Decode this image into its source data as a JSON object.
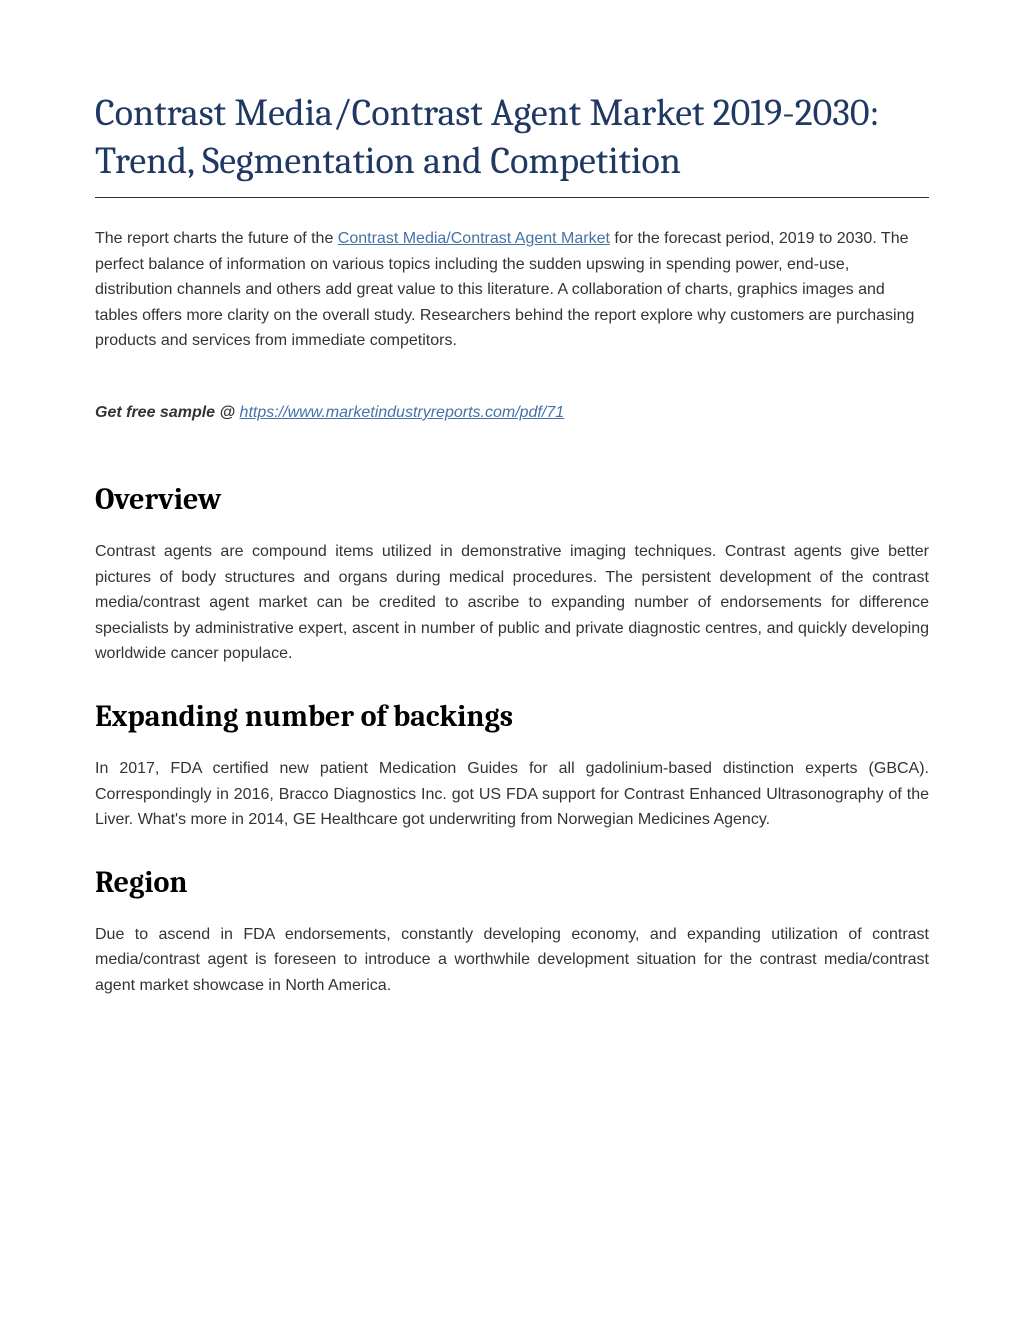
{
  "title": "Contrast Media/Contrast Agent Market 2019-2030: Trend, Segmentation and Competition",
  "intro": {
    "before_link": "The report charts the future of the ",
    "link_text": "Contrast Media/Contrast Agent Market",
    "after_link": " for the forecast period, 2019 to 2030. The perfect balance of information on various topics including the sudden upswing in spending power, end-use, distribution channels and others add great value to this literature. A collaboration of charts, graphics images and tables offers more clarity on the overall study. Researchers behind the report explore why customers are purchasing products and services from immediate competitors."
  },
  "sample": {
    "label": "Get free sample @ ",
    "link": "https://www.marketindustryreports.com/pdf/71"
  },
  "sections": [
    {
      "heading": "Overview",
      "body": "Contrast agents are compound items utilized in demonstrative imaging techniques. Contrast agents give better pictures of body structures and organs during medical procedures. The persistent development of the contrast media/contrast agent market can be credited to ascribe to expanding number of endorsements for difference specialists by administrative expert, ascent in number of public and private diagnostic centres, and quickly developing worldwide cancer populace."
    },
    {
      "heading": "Expanding number of backings",
      "body": "In 2017, FDA certified new patient Medication Guides for all gadolinium-based distinction experts (GBCA). Correspondingly in 2016, Bracco Diagnostics Inc. got US FDA support for Contrast Enhanced Ultrasonography of the Liver. What's more in 2014, GE Healthcare got underwriting from Norwegian Medicines Agency."
    },
    {
      "heading": "Region",
      "body": "Due to ascend in FDA endorsements, constantly developing economy, and expanding utilization of contrast media/contrast agent is foreseen to introduce a worthwhile development situation for the contrast media/contrast agent market showcase in North America."
    }
  ],
  "colors": {
    "title_color": "#1f3864",
    "link_color": "#4472a8",
    "body_color": "#333333",
    "heading_color": "#000000",
    "background": "#ffffff"
  }
}
